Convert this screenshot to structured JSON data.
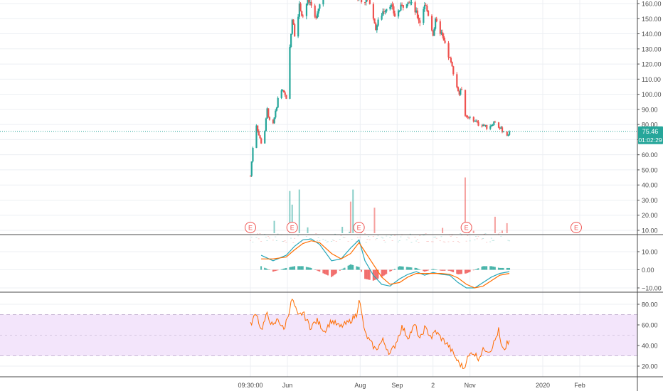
{
  "colors": {
    "up": "#26a69a",
    "down": "#ef5350",
    "macd_line": "#26a6b8",
    "signal_line": "#ff6d00",
    "rsi_line": "#ff6d00",
    "rsi_band_fill": "#f3e5fb",
    "price_line": "#26a69a",
    "grid": "#eceff3",
    "pane_border": "#4a4a4a",
    "axis_text": "#4a4a4a",
    "earnings_marker": "#ef5350"
  },
  "chart_data": [
    {
      "pane": "price",
      "type": "candlestick",
      "y_axis": {
        "ticks": [
          "160.00",
          "150.00",
          "140.00",
          "130.00",
          "120.00",
          "110.00",
          "100.00",
          "90.00",
          "80.00",
          "70.00",
          "60.00",
          "50.00",
          "40.00",
          "30.00",
          "20.00",
          "10.00"
        ],
        "range": [
          10,
          164
        ]
      },
      "last_price": "75.46",
      "countdown": "01:02:29",
      "close_path": [
        [
          "2019-05-01",
          46
        ],
        [
          "2019-05-03",
          65
        ],
        [
          "2019-05-06",
          80
        ],
        [
          "2019-05-08",
          73
        ],
        [
          "2019-05-10",
          68
        ],
        [
          "2019-05-13",
          76
        ],
        [
          "2019-05-15",
          90
        ],
        [
          "2019-05-17",
          82
        ],
        [
          "2019-05-20",
          80
        ],
        [
          "2019-05-22",
          88
        ],
        [
          "2019-05-24",
          97
        ],
        [
          "2019-05-27",
          103
        ],
        [
          "2019-05-29",
          100
        ],
        [
          "2019-05-31",
          98
        ],
        [
          "2019-06-03",
          130
        ],
        [
          "2019-06-05",
          150
        ],
        [
          "2019-06-07",
          140
        ],
        [
          "2019-06-11",
          158
        ],
        [
          "2019-06-14",
          152
        ],
        [
          "2019-06-18",
          163
        ],
        [
          "2019-06-24",
          150
        ],
        [
          "2019-06-28",
          160
        ],
        [
          "2019-07-03",
          168
        ],
        [
          "2019-07-10",
          172
        ],
        [
          "2019-07-18",
          170
        ],
        [
          "2019-07-26",
          165
        ],
        [
          "2019-08-02",
          163
        ],
        [
          "2019-08-09",
          162
        ],
        [
          "2019-08-14",
          144
        ],
        [
          "2019-08-20",
          155
        ],
        [
          "2019-08-26",
          160
        ],
        [
          "2019-08-30",
          152
        ],
        [
          "2019-09-05",
          158
        ],
        [
          "2019-09-10",
          163
        ],
        [
          "2019-09-16",
          155
        ],
        [
          "2019-09-20",
          148
        ],
        [
          "2019-09-24",
          160
        ],
        [
          "2019-09-27",
          153
        ],
        [
          "2019-10-01",
          140
        ],
        [
          "2019-10-03",
          148
        ],
        [
          "2019-10-08",
          140
        ],
        [
          "2019-10-11",
          132
        ],
        [
          "2019-10-15",
          123
        ],
        [
          "2019-10-18",
          115
        ],
        [
          "2019-10-21",
          105
        ],
        [
          "2019-10-23",
          100
        ],
        [
          "2019-10-25",
          104
        ],
        [
          "2019-10-28",
          86
        ],
        [
          "2019-10-31",
          84
        ],
        [
          "2019-11-05",
          83
        ],
        [
          "2019-11-08",
          80
        ],
        [
          "2019-11-12",
          80
        ],
        [
          "2019-11-15",
          78
        ],
        [
          "2019-11-19",
          80
        ],
        [
          "2019-11-22",
          82
        ],
        [
          "2019-11-25",
          79
        ],
        [
          "2019-11-28",
          76
        ],
        [
          "2019-12-02",
          73
        ],
        [
          "2019-12-04",
          75.46
        ]
      ],
      "volume_spikes": [
        [
          "2019-06-03",
          36
        ],
        [
          "2019-06-05",
          27
        ],
        [
          "2019-06-11",
          37
        ],
        [
          "2019-07-24",
          29
        ],
        [
          "2019-07-26",
          37
        ],
        [
          "2019-08-13",
          25
        ],
        [
          "2019-10-28",
          45
        ],
        [
          "2019-11-22",
          19
        ]
      ],
      "earnings": [
        "2019-05-01",
        "2019-06-05",
        "2019-07-31",
        "2019-10-29",
        "2020-01-29"
      ],
      "earnings_label": "E"
    },
    {
      "pane": "macd",
      "type": "line",
      "y_axis": {
        "ticks": [
          "10.00",
          "0.00",
          "−10.00"
        ],
        "range": [
          -12,
          18
        ]
      },
      "series_macd": [
        [
          "2019-05-10",
          8
        ],
        [
          "2019-05-20",
          5
        ],
        [
          "2019-05-31",
          8
        ],
        [
          "2019-06-07",
          13
        ],
        [
          "2019-06-14",
          16.5
        ],
        [
          "2019-06-21",
          17
        ],
        [
          "2019-06-28",
          14
        ],
        [
          "2019-07-08",
          5
        ],
        [
          "2019-07-16",
          6
        ],
        [
          "2019-07-24",
          12
        ],
        [
          "2019-07-31",
          16.5
        ],
        [
          "2019-08-05",
          5
        ],
        [
          "2019-08-12",
          -3
        ],
        [
          "2019-08-19",
          -8
        ],
        [
          "2019-08-26",
          -9
        ],
        [
          "2019-09-03",
          -5
        ],
        [
          "2019-09-10",
          -2.5
        ],
        [
          "2019-09-17",
          -1
        ],
        [
          "2019-09-24",
          -3
        ],
        [
          "2019-10-01",
          -1.5
        ],
        [
          "2019-10-08",
          -2.5
        ],
        [
          "2019-10-15",
          -3
        ],
        [
          "2019-10-22",
          -7
        ],
        [
          "2019-10-29",
          -10
        ],
        [
          "2019-11-05",
          -10
        ],
        [
          "2019-11-12",
          -7
        ],
        [
          "2019-11-19",
          -4
        ],
        [
          "2019-11-26",
          -2
        ],
        [
          "2019-12-04",
          -1
        ]
      ],
      "series_signal": [
        [
          "2019-05-10",
          6
        ],
        [
          "2019-05-20",
          6
        ],
        [
          "2019-05-31",
          7
        ],
        [
          "2019-06-07",
          11
        ],
        [
          "2019-06-14",
          14.5
        ],
        [
          "2019-06-21",
          16
        ],
        [
          "2019-06-28",
          15
        ],
        [
          "2019-07-08",
          9
        ],
        [
          "2019-07-16",
          6
        ],
        [
          "2019-07-24",
          9
        ],
        [
          "2019-07-31",
          15
        ],
        [
          "2019-08-05",
          10
        ],
        [
          "2019-08-12",
          3
        ],
        [
          "2019-08-19",
          -4
        ],
        [
          "2019-08-26",
          -8
        ],
        [
          "2019-09-03",
          -7
        ],
        [
          "2019-09-10",
          -4
        ],
        [
          "2019-09-17",
          -2
        ],
        [
          "2019-09-24",
          -2
        ],
        [
          "2019-10-01",
          -2
        ],
        [
          "2019-10-08",
          -2
        ],
        [
          "2019-10-15",
          -2.5
        ],
        [
          "2019-10-22",
          -4.5
        ],
        [
          "2019-10-29",
          -8
        ],
        [
          "2019-11-05",
          -10
        ],
        [
          "2019-11-12",
          -9
        ],
        [
          "2019-11-19",
          -6
        ],
        [
          "2019-11-26",
          -3
        ],
        [
          "2019-12-04",
          -2
        ]
      ]
    },
    {
      "pane": "rsi",
      "type": "line",
      "y_axis": {
        "ticks": [
          "80.00",
          "60.00",
          "40.00",
          "20.00"
        ],
        "range": [
          10,
          90
        ]
      },
      "band": [
        30,
        70
      ],
      "series_rsi": [
        [
          "2019-05-01",
          60
        ],
        [
          "2019-05-06",
          72
        ],
        [
          "2019-05-10",
          55
        ],
        [
          "2019-05-15",
          70
        ],
        [
          "2019-05-20",
          58
        ],
        [
          "2019-05-24",
          66
        ],
        [
          "2019-05-29",
          55
        ],
        [
          "2019-06-03",
          76
        ],
        [
          "2019-06-05",
          85
        ],
        [
          "2019-06-10",
          68
        ],
        [
          "2019-06-14",
          72
        ],
        [
          "2019-06-20",
          58
        ],
        [
          "2019-06-26",
          64
        ],
        [
          "2019-07-02",
          54
        ],
        [
          "2019-07-08",
          64
        ],
        [
          "2019-07-15",
          58
        ],
        [
          "2019-07-22",
          62
        ],
        [
          "2019-07-29",
          70
        ],
        [
          "2019-07-31",
          86
        ],
        [
          "2019-08-05",
          52
        ],
        [
          "2019-08-09",
          44
        ],
        [
          "2019-08-14",
          36
        ],
        [
          "2019-08-20",
          45
        ],
        [
          "2019-08-26",
          32
        ],
        [
          "2019-08-30",
          40
        ],
        [
          "2019-09-05",
          58
        ],
        [
          "2019-09-10",
          48
        ],
        [
          "2019-09-16",
          60
        ],
        [
          "2019-09-20",
          45
        ],
        [
          "2019-09-24",
          57
        ],
        [
          "2019-09-30",
          48
        ],
        [
          "2019-10-03",
          54
        ],
        [
          "2019-10-08",
          47
        ],
        [
          "2019-10-14",
          40
        ],
        [
          "2019-10-18",
          32
        ],
        [
          "2019-10-22",
          24
        ],
        [
          "2019-10-27",
          18
        ],
        [
          "2019-10-29",
          26
        ],
        [
          "2019-11-03",
          34
        ],
        [
          "2019-11-08",
          28
        ],
        [
          "2019-11-13",
          37
        ],
        [
          "2019-11-18",
          35
        ],
        [
          "2019-11-22",
          45
        ],
        [
          "2019-11-25",
          55
        ],
        [
          "2019-11-27",
          40
        ],
        [
          "2019-11-30",
          33
        ],
        [
          "2019-12-02",
          44
        ],
        [
          "2019-12-04",
          42
        ]
      ]
    }
  ],
  "x_axis": {
    "ticks": [
      {
        "date": "2019-05-01",
        "label": "09:30:00"
      },
      {
        "date": "2019-06-01",
        "label": "Jun"
      },
      {
        "date": "2019-08-01",
        "label": "Aug"
      },
      {
        "date": "2019-09-01",
        "label": "Sep"
      },
      {
        "date": "2019-10-01",
        "label": "2"
      },
      {
        "date": "2019-11-01",
        "label": "Nov"
      },
      {
        "date": "2020-01-01",
        "label": "2020"
      },
      {
        "date": "2020-02-01",
        "label": "Feb"
      }
    ]
  }
}
